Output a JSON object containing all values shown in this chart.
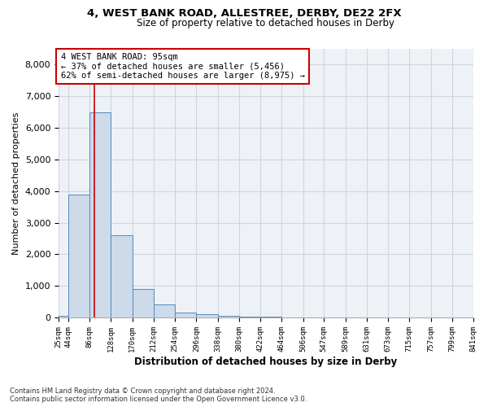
{
  "title1": "4, WEST BANK ROAD, ALLESTREE, DERBY, DE22 2FX",
  "title2": "Size of property relative to detached houses in Derby",
  "xlabel": "Distribution of detached houses by size in Derby",
  "ylabel": "Number of detached properties",
  "bin_edges": [
    25,
    44,
    86,
    128,
    170,
    212,
    254,
    296,
    338,
    380,
    422,
    464,
    506,
    547,
    589,
    631,
    673,
    715,
    757,
    799,
    841
  ],
  "bar_heights": [
    50,
    3900,
    6500,
    2600,
    900,
    400,
    150,
    100,
    50,
    30,
    20,
    10,
    10,
    5,
    5,
    5,
    5,
    5,
    5,
    5
  ],
  "bar_color": "#ccdaea",
  "bar_edge_color": "#5588bb",
  "grid_color": "#ccd5e0",
  "background_color": "#eef2f7",
  "red_line_x": 95,
  "annotation_title": "4 WEST BANK ROAD: 95sqm",
  "annotation_line1": "← 37% of detached houses are smaller (5,456)",
  "annotation_line2": "62% of semi-detached houses are larger (8,975) →",
  "annotation_box_color": "#ffffff",
  "annotation_border_color": "#cc0000",
  "footnote1": "Contains HM Land Registry data © Crown copyright and database right 2024.",
  "footnote2": "Contains public sector information licensed under the Open Government Licence v3.0.",
  "ylim": [
    0,
    8500
  ],
  "yticks": [
    0,
    1000,
    2000,
    3000,
    4000,
    5000,
    6000,
    7000,
    8000
  ]
}
